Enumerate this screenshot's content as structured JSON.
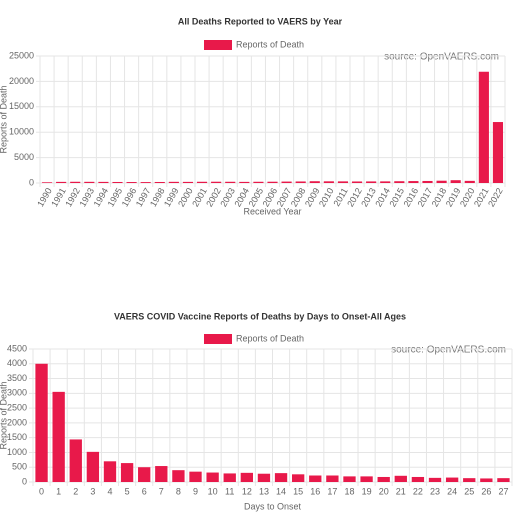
{
  "chart_data": [
    {
      "type": "bar",
      "title": "All Deaths Reported to VAERS by Year",
      "legend": "Reports of Death",
      "source": "source: OpenVAERS.com",
      "y_label": "Reports of Death",
      "x_label": "Received Year",
      "color": "#e8194a",
      "grid": true,
      "rotate_labels": true,
      "categories": [
        "1990",
        "1991",
        "1992",
        "1993",
        "1994",
        "1995",
        "1996",
        "1997",
        "1998",
        "1999",
        "2000",
        "2001",
        "2002",
        "2003",
        "2004",
        "2005",
        "2006",
        "2007",
        "2008",
        "2009",
        "2010",
        "2011",
        "2012",
        "2013",
        "2014",
        "2015",
        "2016",
        "2017",
        "2018",
        "2019",
        "2020",
        "2021",
        "2022"
      ],
      "values": [
        140,
        220,
        240,
        230,
        220,
        200,
        190,
        180,
        200,
        230,
        220,
        240,
        250,
        240,
        220,
        240,
        250,
        280,
        300,
        350,
        330,
        320,
        300,
        310,
        320,
        350,
        380,
        400,
        450,
        550,
        420,
        21900,
        12000
      ],
      "ylim": [
        0,
        25000
      ],
      "yticks": [
        0,
        5000,
        10000,
        15000,
        20000,
        25000
      ]
    },
    {
      "type": "bar",
      "title": "VAERS COVID Vaccine Reports of Deaths by Days to Onset-All Ages",
      "legend": "Reports of Death",
      "source": "source: OpenVAERS.com",
      "y_label": "Reports of Death",
      "x_label": "Days to Onset",
      "color": "#e8194a",
      "grid": true,
      "rotate_labels": false,
      "categories": [
        0,
        1,
        2,
        3,
        4,
        5,
        6,
        7,
        8,
        9,
        10,
        11,
        12,
        13,
        14,
        15,
        16,
        17,
        18,
        19,
        20,
        21,
        22,
        23,
        24,
        25,
        26,
        27
      ],
      "values": [
        4000,
        3050,
        1440,
        1020,
        700,
        640,
        500,
        540,
        400,
        350,
        320,
        290,
        310,
        280,
        300,
        260,
        220,
        220,
        190,
        190,
        170,
        210,
        170,
        140,
        150,
        130,
        120,
        130
      ],
      "ylim": [
        0,
        4500
      ],
      "yticks": [
        0,
        500,
        1000,
        1500,
        2000,
        2500,
        3000,
        3500,
        4000,
        4500
      ]
    }
  ]
}
